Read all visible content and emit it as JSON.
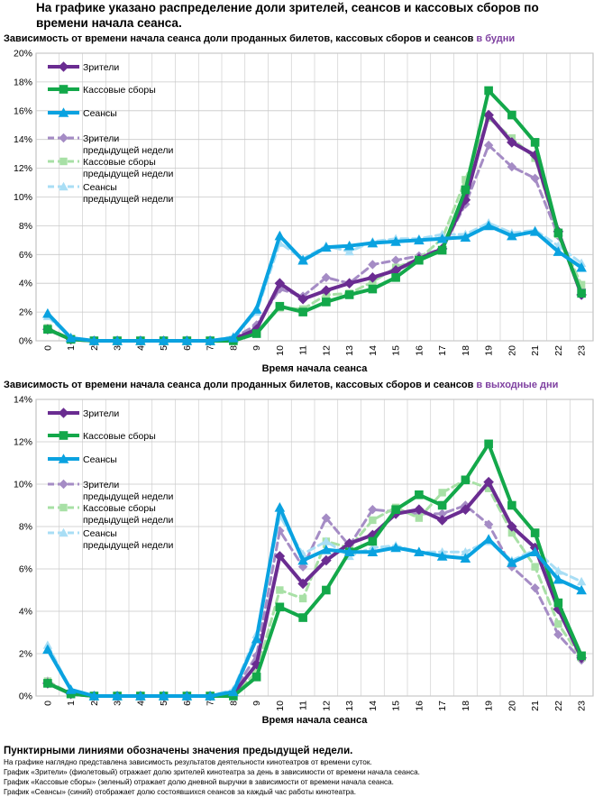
{
  "page": {
    "main_title": "На графике указано распределение доли зрителей, сеансов и кассовых сборов по времени начала сеанса.",
    "footer_bold": "Пунктирными линиями обозначены значения предыдущей недели.",
    "footer_lines": [
      "На графике наглядно представлена зависимость результатов деятельности кинотеатров от времени суток.",
      "График «Зрители» (фиолетовый) отражает долю зрителей кинотеатра за день в зависимости от времени начала сеанса.",
      "График «Кассовые сборы» (зеленый) отражает долю дневной выручки в зависимости от времени начала сеанса.",
      "График «Сеансы» (синий) отображает долю состоявшихся сеансов за каждый час работы кинотеатра."
    ]
  },
  "colors": {
    "viewers": "#6a2c91",
    "box_office": "#13a84a",
    "sessions": "#0aa2e0",
    "viewers_prev": "#a58cc5",
    "box_office_prev": "#a8e0a6",
    "sessions_prev": "#a9def5",
    "accent_text": "#7e3fa0",
    "grid": "#c8c8c8"
  },
  "chart_data": [
    {
      "type": "line",
      "title": "Зависимость от времени начала сеанса доли проданных билетов, кассовых сборов и сеансов",
      "title_highlight": "в будни",
      "xlabel": "Время начала сеанса",
      "ylabel": "",
      "categories": [
        "0",
        "1",
        "2",
        "3",
        "4",
        "5",
        "6",
        "7",
        "8",
        "9",
        "10",
        "11",
        "12",
        "13",
        "14",
        "15",
        "16",
        "17",
        "18",
        "19",
        "20",
        "21",
        "22",
        "23"
      ],
      "ylim": [
        0,
        20
      ],
      "yticks": [
        0,
        2,
        4,
        6,
        8,
        10,
        12,
        14,
        16,
        18,
        20
      ],
      "ytick_labels": [
        "0%",
        "2%",
        "4%",
        "6%",
        "8%",
        "10%",
        "12%",
        "14%",
        "16%",
        "18%",
        "20%"
      ],
      "grid": true,
      "legend": "top-left",
      "series": [
        {
          "key": "viewers",
          "name": "Зрители",
          "style": "solid",
          "marker": "diamond",
          "values": [
            0.8,
            0.1,
            0.0,
            0.0,
            0.0,
            0.0,
            0.0,
            0.0,
            0.1,
            0.8,
            4.0,
            2.9,
            3.5,
            4.0,
            4.4,
            4.9,
            5.7,
            6.4,
            9.8,
            15.7,
            13.8,
            12.9,
            7.6,
            3.2
          ]
        },
        {
          "key": "box_office",
          "name": "Кассовые сборы",
          "style": "solid",
          "marker": "square",
          "values": [
            0.8,
            0.1,
            0.0,
            0.0,
            0.0,
            0.0,
            0.0,
            0.0,
            0.0,
            0.5,
            2.4,
            2.0,
            2.7,
            3.2,
            3.6,
            4.4,
            5.6,
            6.3,
            10.5,
            17.4,
            15.7,
            13.8,
            7.5,
            3.3
          ]
        },
        {
          "key": "sessions",
          "name": "Сеансы",
          "style": "solid",
          "marker": "triangle",
          "values": [
            1.9,
            0.2,
            0.0,
            0.0,
            0.0,
            0.0,
            0.0,
            0.0,
            0.2,
            2.2,
            7.3,
            5.6,
            6.5,
            6.6,
            6.8,
            6.9,
            7.0,
            7.1,
            7.2,
            8.0,
            7.3,
            7.6,
            6.2,
            5.1
          ]
        },
        {
          "key": "viewers_prev",
          "name": "Зрители предыдущей недели",
          "style": "dashed",
          "marker": "diamond",
          "values": [
            0.8,
            0.1,
            0.0,
            0.0,
            0.0,
            0.0,
            0.0,
            0.0,
            0.2,
            1.1,
            3.6,
            3.1,
            4.4,
            4.0,
            5.3,
            5.6,
            5.9,
            6.4,
            9.5,
            13.6,
            12.1,
            11.3,
            7.3,
            3.6
          ]
        },
        {
          "key": "box_office_prev",
          "name": "Кассовые сборы предыдущей недели",
          "style": "dashed",
          "marker": "square",
          "values": [
            0.9,
            0.1,
            0.0,
            0.0,
            0.0,
            0.0,
            0.0,
            0.0,
            0.1,
            0.6,
            2.3,
            2.2,
            3.2,
            3.3,
            4.1,
            5.1,
            5.7,
            7.1,
            11.2,
            15.5,
            14.1,
            12.7,
            7.4,
            3.9
          ]
        },
        {
          "key": "sessions_prev",
          "name": "Сеансы предыдущей недели",
          "style": "dashed",
          "marker": "triangle",
          "values": [
            1.7,
            0.2,
            0.0,
            0.0,
            0.0,
            0.0,
            0.0,
            0.0,
            0.3,
            2.0,
            6.8,
            5.7,
            6.6,
            6.2,
            6.9,
            7.1,
            7.1,
            7.4,
            7.4,
            8.2,
            7.5,
            7.7,
            6.6,
            5.4
          ]
        }
      ]
    },
    {
      "type": "line",
      "title": "Зависимость от времени начала сеанса доли проданных билетов, кассовых сборов и сеансов",
      "title_highlight": "в выходные дни",
      "xlabel": "Время начала сеанса",
      "ylabel": "",
      "categories": [
        "0",
        "1",
        "2",
        "3",
        "4",
        "5",
        "6",
        "7",
        "8",
        "9",
        "10",
        "11",
        "12",
        "13",
        "14",
        "15",
        "16",
        "17",
        "18",
        "19",
        "20",
        "21",
        "22",
        "23"
      ],
      "ylim": [
        0,
        14
      ],
      "yticks": [
        0,
        2,
        4,
        6,
        8,
        10,
        12,
        14
      ],
      "ytick_labels": [
        "0%",
        "2%",
        "4%",
        "6%",
        "8%",
        "10%",
        "12%",
        "14%"
      ],
      "grid": true,
      "legend": "top-left",
      "series": [
        {
          "key": "viewers",
          "name": "Зрители",
          "style": "solid",
          "marker": "diamond",
          "values": [
            0.6,
            0.1,
            0.0,
            0.0,
            0.0,
            0.0,
            0.0,
            0.0,
            0.1,
            1.5,
            6.6,
            5.3,
            6.4,
            7.2,
            7.6,
            8.6,
            8.8,
            8.3,
            8.8,
            10.1,
            8.0,
            7.0,
            4.1,
            1.8
          ]
        },
        {
          "key": "box_office",
          "name": "Кассовые сборы",
          "style": "solid",
          "marker": "square",
          "values": [
            0.6,
            0.1,
            0.0,
            0.0,
            0.0,
            0.0,
            0.0,
            0.0,
            0.0,
            0.9,
            4.2,
            3.7,
            5.0,
            6.8,
            7.3,
            8.8,
            9.5,
            9.0,
            10.2,
            11.9,
            9.0,
            7.7,
            4.4,
            1.9
          ]
        },
        {
          "key": "sessions",
          "name": "Сеансы",
          "style": "solid",
          "marker": "triangle",
          "values": [
            2.2,
            0.3,
            0.0,
            0.0,
            0.0,
            0.0,
            0.0,
            0.0,
            0.2,
            2.7,
            8.9,
            6.4,
            6.9,
            6.8,
            6.8,
            7.0,
            6.8,
            6.6,
            6.5,
            7.4,
            6.3,
            6.8,
            5.5,
            5.0
          ]
        },
        {
          "key": "viewers_prev",
          "name": "Зрители предыдущей недели",
          "style": "dashed",
          "marker": "diamond",
          "values": [
            0.7,
            0.1,
            0.0,
            0.0,
            0.0,
            0.0,
            0.0,
            0.0,
            0.2,
            1.9,
            7.8,
            6.1,
            8.4,
            7.1,
            8.8,
            8.7,
            8.6,
            8.6,
            9.0,
            8.1,
            6.1,
            5.1,
            2.9,
            1.7
          ]
        },
        {
          "key": "box_office_prev",
          "name": "Кассовые сборы предыдущей недели",
          "style": "dashed",
          "marker": "square",
          "values": [
            0.7,
            0.1,
            0.0,
            0.0,
            0.0,
            0.0,
            0.0,
            0.0,
            0.1,
            1.1,
            5.0,
            4.6,
            7.3,
            7.0,
            8.3,
            8.9,
            8.4,
            9.6,
            10.2,
            9.8,
            7.7,
            6.1,
            3.4,
            1.8
          ]
        },
        {
          "key": "sessions_prev",
          "name": "Сеансы предыдущей недели",
          "style": "dashed",
          "marker": "triangle",
          "values": [
            2.4,
            0.3,
            0.0,
            0.0,
            0.0,
            0.0,
            0.0,
            0.0,
            0.3,
            2.9,
            8.5,
            6.7,
            7.3,
            6.6,
            7.0,
            7.1,
            6.8,
            6.8,
            6.8,
            7.3,
            6.4,
            6.9,
            5.9,
            5.4
          ]
        }
      ]
    }
  ]
}
